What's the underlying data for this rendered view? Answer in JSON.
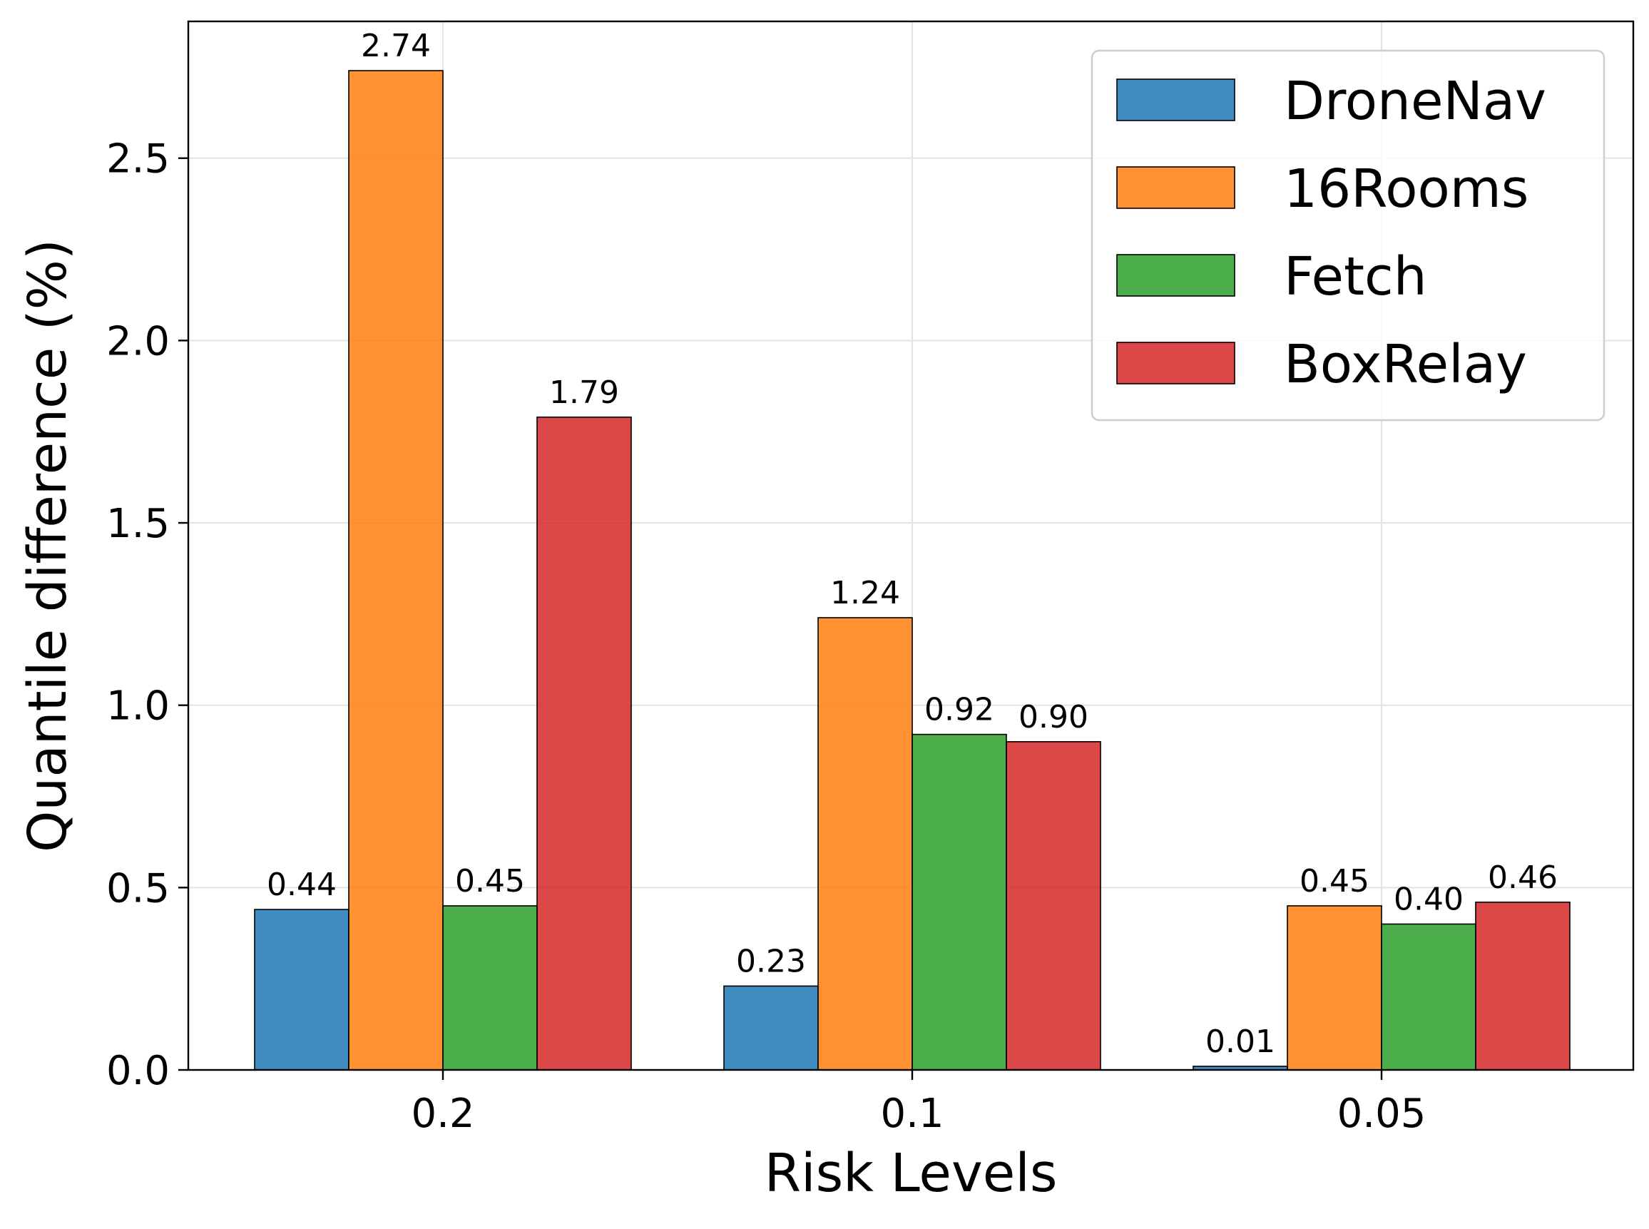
{
  "chart_data": {
    "type": "bar",
    "title": "",
    "xlabel": "Risk Levels",
    "ylabel": "Quantile difference (%)",
    "categories": [
      "0.2",
      "0.1",
      "0.05"
    ],
    "ylim": [
      0,
      2.875
    ],
    "yticks": [
      "0.0",
      "0.5",
      "1.0",
      "1.5",
      "2.0",
      "2.5"
    ],
    "grid": true,
    "legend_position": "top-right",
    "series": [
      {
        "name": "DroneNav",
        "color": "#1f77b4",
        "values": [
          0.44,
          0.23,
          0.01
        ],
        "labels": [
          "0.44",
          "0.23",
          "0.01"
        ]
      },
      {
        "name": "16Rooms",
        "color": "#ff7f0e",
        "values": [
          2.74,
          1.24,
          0.45
        ],
        "labels": [
          "2.74",
          "1.24",
          "0.45"
        ]
      },
      {
        "name": "Fetch",
        "color": "#2ca02c",
        "values": [
          0.45,
          0.92,
          0.4
        ],
        "labels": [
          "0.45",
          "0.92",
          "0.40"
        ]
      },
      {
        "name": "BoxRelay",
        "color": "#d62728",
        "values": [
          1.79,
          0.9,
          0.46
        ],
        "labels": [
          "1.79",
          "0.90",
          "0.46"
        ]
      }
    ]
  }
}
